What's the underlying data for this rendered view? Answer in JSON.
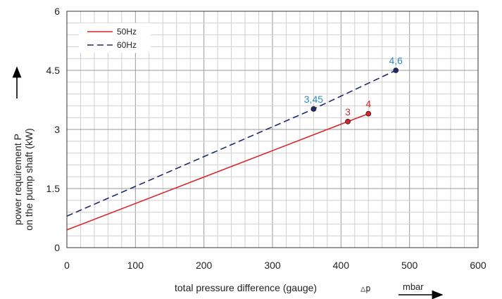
{
  "chart_data": {
    "type": "line",
    "xlabel": "total pressure difference (gauge)",
    "xlabel_symbol": "△p",
    "xunit": "mbar",
    "ylabel_line1": "power requirement P",
    "ylabel_line2": "on the pump shaft (kW)",
    "xlim": [
      0,
      600
    ],
    "ylim": [
      0,
      6
    ],
    "x_ticks": [
      0,
      100,
      200,
      300,
      400,
      500,
      600
    ],
    "y_ticks": [
      0,
      1.5,
      3,
      4.5,
      6
    ],
    "y_tick_labels": [
      "0",
      "1.5",
      "3",
      "4.5",
      "6"
    ],
    "grid": true,
    "legend_position": "top-left",
    "series": [
      {
        "name": "50Hz",
        "color": "#d9232a",
        "dash": "solid",
        "x": [
          0,
          410,
          440
        ],
        "y": [
          0.45,
          3.2,
          3.4
        ],
        "markers": [
          {
            "x": 410,
            "y": 3.2,
            "label": "3"
          },
          {
            "x": 440,
            "y": 3.4,
            "label": "4"
          }
        ],
        "label_color": "#d9232a"
      },
      {
        "name": "60Hz",
        "color": "#1f2a6b",
        "dash": "dashed",
        "x": [
          0,
          360,
          480
        ],
        "y": [
          0.8,
          3.52,
          4.5
        ],
        "markers": [
          {
            "x": 360,
            "y": 3.52,
            "label": "3,45"
          },
          {
            "x": 480,
            "y": 4.5,
            "label": "4,6"
          }
        ],
        "label_color": "#2f8fc0"
      }
    ]
  }
}
